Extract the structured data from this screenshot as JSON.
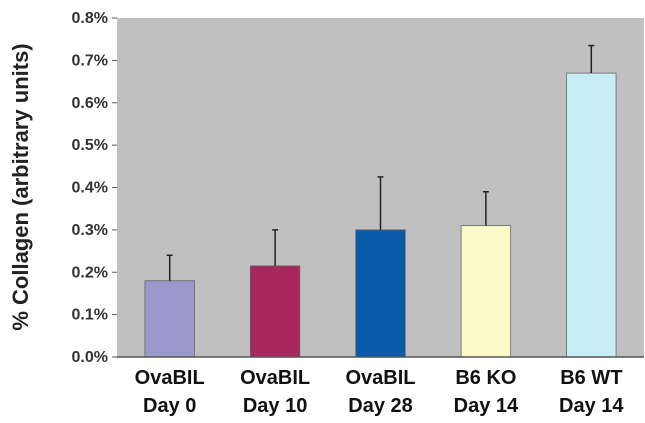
{
  "chart_data": {
    "type": "bar",
    "ylabel": "% Collagen (arbitrary units)",
    "ylim": [
      0,
      0.8
    ],
    "yticks": [
      "0.0%",
      "0.1%",
      "0.2%",
      "0.3%",
      "0.4%",
      "0.5%",
      "0.6%",
      "0.7%",
      "0.8%"
    ],
    "categories": [
      {
        "line1": "OvaBIL",
        "line2": "Day 0"
      },
      {
        "line1": "OvaBIL",
        "line2": "Day 10"
      },
      {
        "line1": "OvaBIL",
        "line2": "Day 28"
      },
      {
        "line1": "B6 KO",
        "line2": "Day 14"
      },
      {
        "line1": "B6 WT",
        "line2": "Day 14"
      }
    ],
    "values": [
      0.18,
      0.215,
      0.3,
      0.31,
      0.67
    ],
    "errors": [
      0.06,
      0.085,
      0.125,
      0.08,
      0.065
    ],
    "colors": [
      "#9999cc",
      "#a8285e",
      "#0a5aab",
      "#fcfac8",
      "#c6eef4"
    ],
    "plot_background": "#c0c0c0",
    "grid": false
  }
}
